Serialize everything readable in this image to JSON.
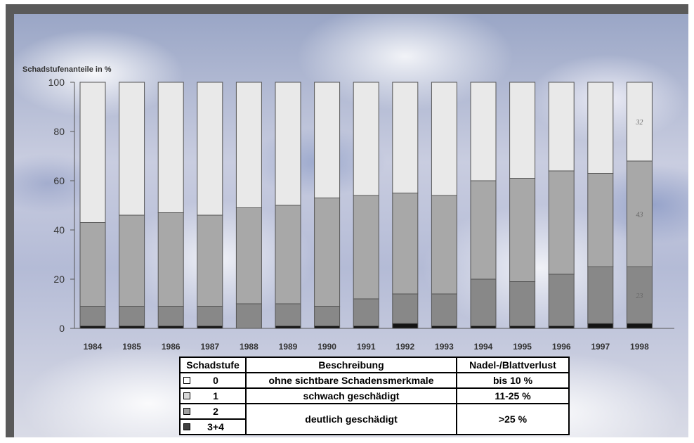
{
  "chart_data": {
    "type": "bar",
    "stacked": true,
    "ylabel": "Schadstufenanteile in %",
    "ylim": [
      0,
      100
    ],
    "yticks": [
      "0",
      "20",
      "40",
      "60",
      "80",
      "100"
    ],
    "categories": [
      "1984",
      "1985",
      "1986",
      "1987",
      "1988",
      "1989",
      "1990",
      "1991",
      "1992",
      "1993",
      "1994",
      "1995",
      "1996",
      "1997",
      "1998"
    ],
    "series": [
      {
        "name": "3+4",
        "color": "#141414",
        "values": [
          1,
          1,
          1,
          1,
          0,
          1,
          1,
          1,
          2,
          1,
          1,
          1,
          1,
          2,
          2
        ]
      },
      {
        "name": "2",
        "color": "#888888",
        "values": [
          8,
          8,
          8,
          8,
          10,
          9,
          8,
          11,
          12,
          13,
          19,
          18,
          21,
          23,
          23
        ]
      },
      {
        "name": "1",
        "color": "#a8a8a8",
        "values": [
          34,
          37,
          38,
          37,
          39,
          40,
          44,
          42,
          41,
          40,
          40,
          42,
          42,
          38,
          43
        ]
      },
      {
        "name": "0",
        "color": "#e9e9e9",
        "values": [
          57,
          54,
          53,
          54,
          51,
          50,
          47,
          46,
          45,
          46,
          40,
          39,
          36,
          37,
          32
        ]
      }
    ],
    "data_labels": [
      {
        "category": "1998",
        "series": "0",
        "text": "32"
      },
      {
        "category": "1998",
        "series": "1",
        "text": "43"
      },
      {
        "category": "1998",
        "series": "2",
        "text": "23"
      }
    ],
    "grid": false
  },
  "legend": {
    "headers": {
      "stufe": "Schadstufe",
      "beschreibung": "Beschreibung",
      "verlust": "Nadel-/Blattverlust"
    },
    "rows": [
      {
        "stufe": "0",
        "swatch": "#ffffff",
        "beschreibung": "ohne sichtbare Schadensmerkmale",
        "verlust": "bis 10 %"
      },
      {
        "stufe": "1",
        "swatch": "#d8d8d8",
        "beschreibung": "schwach geschädigt",
        "verlust": "11-25 %"
      },
      {
        "stufe": "2",
        "swatch": "#a0a0a0",
        "beschreibung": "deutlich geschädigt",
        "verlust": ">25 %"
      },
      {
        "stufe": "3+4",
        "swatch": "#404040"
      }
    ]
  }
}
